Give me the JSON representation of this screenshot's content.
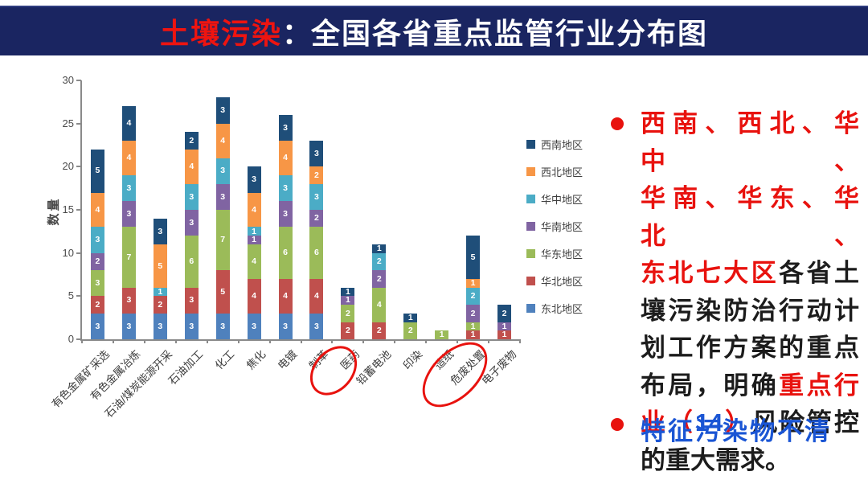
{
  "title": {
    "highlight": "土壤污染",
    "separator": "：",
    "rest": "全国各省重点监管行业分布图"
  },
  "chart_data": {
    "type": "stacked-bar",
    "ylabel": "数量",
    "ylim": [
      0,
      30
    ],
    "yticks": [
      0,
      5,
      10,
      15,
      20,
      25,
      30
    ],
    "grid": false,
    "legend_position": "right",
    "categories": [
      "有色金属矿采选",
      "有色金属冶炼",
      "石油/煤炭能源开采",
      "石油加工",
      "化工",
      "焦化",
      "电镀",
      "制革",
      "医药",
      "铅蓄电池",
      "印染",
      "造纸",
      "危废处置",
      "电子废物"
    ],
    "series_bottom_to_top": [
      {
        "name": "东北地区",
        "color": "#4F81BD",
        "values": [
          3,
          3,
          3,
          3,
          3,
          3,
          3,
          3,
          0,
          0,
          0,
          0,
          0,
          0
        ]
      },
      {
        "name": "华北地区",
        "color": "#C0504D",
        "values": [
          2,
          3,
          2,
          3,
          5,
          4,
          4,
          4,
          2,
          2,
          0,
          0,
          1,
          1
        ]
      },
      {
        "name": "华东地区",
        "color": "#9BBB59",
        "values": [
          3,
          7,
          0,
          6,
          7,
          4,
          6,
          6,
          2,
          4,
          2,
          1,
          1,
          0
        ]
      },
      {
        "name": "华南地区",
        "color": "#8064A2",
        "values": [
          2,
          3,
          0,
          3,
          3,
          1,
          3,
          2,
          1,
          2,
          0,
          0,
          2,
          1
        ]
      },
      {
        "name": "华中地区",
        "color": "#4BACC6",
        "values": [
          3,
          3,
          1,
          3,
          3,
          1,
          3,
          3,
          0,
          2,
          0,
          0,
          2,
          0
        ]
      },
      {
        "name": "西北地区",
        "color": "#F79646",
        "values": [
          4,
          4,
          5,
          4,
          4,
          4,
          4,
          2,
          0,
          0,
          0,
          0,
          1,
          0
        ]
      },
      {
        "name": "西南地区",
        "color": "#1F4E79",
        "values": [
          5,
          4,
          3,
          2,
          3,
          3,
          3,
          3,
          1,
          1,
          1,
          0,
          5,
          2
        ]
      }
    ],
    "totals": [
      22,
      27,
      14,
      24,
      28,
      20,
      26,
      23,
      6,
      11,
      3,
      1,
      12,
      4
    ],
    "legend_top_to_bottom": [
      "西南地区",
      "西北地区",
      "华中地区",
      "华南地区",
      "华东地区",
      "华北地区",
      "东北地区"
    ],
    "circled_categories": [
      "医药",
      "危废处置"
    ]
  },
  "notes": {
    "bullet1_lines": [
      [
        {
          "t": "西南、西北、华中、",
          "c": "red"
        }
      ],
      [
        {
          "t": "华南、华东、华北、",
          "c": "red"
        }
      ],
      [
        {
          "t": "东北七大区",
          "c": "red"
        },
        {
          "t": "各省土",
          "c": "dark"
        }
      ],
      [
        {
          "t": "壤污染防治行动计",
          "c": "dark"
        }
      ],
      [
        {
          "t": "划工作方案的重点",
          "c": "dark"
        }
      ],
      [
        {
          "t": "布局，明确",
          "c": "dark"
        },
        {
          "t": "重点行",
          "c": "red"
        }
      ],
      [
        {
          "t": "业（",
          "c": "red"
        },
        {
          "t": "14",
          "c": "blue"
        },
        {
          "t": "）",
          "c": "red"
        },
        {
          "t": "风险管控",
          "c": "dark"
        }
      ],
      [
        {
          "t": "的重大需求。",
          "c": "dark"
        }
      ]
    ],
    "bullet2": {
      "t": "特征污染物不清",
      "c": "blue"
    }
  },
  "colors": {
    "title_bar_bg": "#1a2561",
    "title_highlight": "#ee1410",
    "emphasis_red": "#e8120e",
    "emphasis_blue": "#1a55d4",
    "body_dark": "#1c1c1c"
  }
}
